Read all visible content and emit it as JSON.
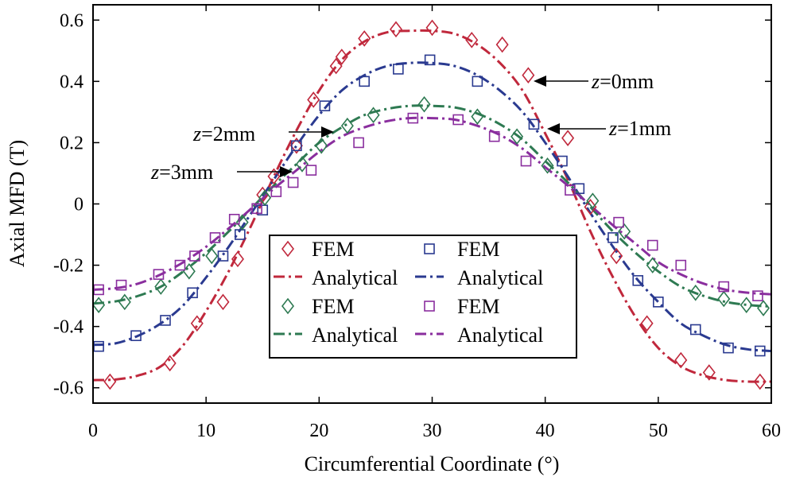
{
  "chart_data": {
    "type": "line",
    "title": "",
    "xlabel": "Circumferential Coordinate (°)",
    "ylabel": "Axial MFD (T)",
    "xlim": [
      0,
      60
    ],
    "ylim": [
      -0.65,
      0.65
    ],
    "xticks": [
      0,
      10,
      20,
      30,
      40,
      50,
      60
    ],
    "yticks": [
      -0.6,
      -0.4,
      -0.2,
      0,
      0.2,
      0.4,
      0.6
    ],
    "xtick_labels": [
      "0",
      "10",
      "20",
      "30",
      "40",
      "50",
      "60"
    ],
    "ytick_labels": [
      "-0.6",
      "-0.4",
      "-0.2",
      "0",
      "0.2",
      "0.4",
      "0.6"
    ],
    "grid": false,
    "legend_position": "lower-center",
    "legend": [
      {
        "label": "FEM",
        "kind": "marker",
        "series": 0
      },
      {
        "label": "FEM",
        "kind": "marker",
        "series": 1
      },
      {
        "label": "Analytical",
        "kind": "line",
        "series": 0
      },
      {
        "label": "Analytical",
        "kind": "line",
        "series": 1
      },
      {
        "label": "FEM",
        "kind": "marker",
        "series": 2
      },
      {
        "label": "FEM",
        "kind": "marker",
        "series": 3
      },
      {
        "label": "Analytical",
        "kind": "line",
        "series": 2
      },
      {
        "label": "Analytical",
        "kind": "line",
        "series": 3
      }
    ],
    "series": [
      {
        "name": "z=0mm",
        "color": "#c0283c",
        "marker": "diamond",
        "analytical": {
          "x": [
            0,
            2,
            4,
            6,
            8,
            10,
            12,
            14,
            16,
            18,
            20,
            22,
            24,
            26,
            28,
            30,
            32,
            34,
            36,
            38,
            40,
            42,
            44,
            46,
            48,
            50,
            52,
            54,
            56,
            58,
            60
          ],
          "y": [
            -0.575,
            -0.573,
            -0.56,
            -0.53,
            -0.46,
            -0.35,
            -0.22,
            -0.07,
            0.09,
            0.24,
            0.37,
            0.47,
            0.53,
            0.56,
            0.565,
            0.565,
            0.555,
            0.52,
            0.46,
            0.37,
            0.23,
            0.08,
            -0.09,
            -0.24,
            -0.37,
            -0.47,
            -0.53,
            -0.56,
            -0.575,
            -0.58,
            -0.58
          ]
        },
        "fem": {
          "x": [
            1.5,
            6.8,
            9.2,
            11.5,
            12.8,
            15,
            16,
            18,
            19.5,
            21.5,
            22,
            24,
            26.8,
            30,
            33.5,
            36.2,
            38.5,
            42,
            44,
            46.3,
            49,
            52,
            54.5,
            59
          ],
          "y": [
            -0.58,
            -0.52,
            -0.39,
            -0.32,
            -0.18,
            0.03,
            0.09,
            0.19,
            0.34,
            0.45,
            0.48,
            0.54,
            0.57,
            0.575,
            0.535,
            0.52,
            0.42,
            0.215,
            -0.01,
            -0.17,
            -0.39,
            -0.51,
            -0.55,
            -0.58
          ]
        }
      },
      {
        "name": "z=1mm",
        "color": "#2a3a90",
        "marker": "square",
        "analytical": {
          "x": [
            0,
            2,
            4,
            6,
            8,
            10,
            12,
            14,
            16,
            18,
            20,
            22,
            24,
            26,
            28,
            30,
            32,
            34,
            36,
            38,
            40,
            42,
            44,
            46,
            48,
            50,
            52,
            54,
            56,
            58,
            60
          ],
          "y": [
            -0.46,
            -0.455,
            -0.43,
            -0.39,
            -0.33,
            -0.24,
            -0.14,
            -0.03,
            0.08,
            0.19,
            0.29,
            0.37,
            0.42,
            0.45,
            0.46,
            0.46,
            0.45,
            0.42,
            0.37,
            0.3,
            0.2,
            0.09,
            -0.03,
            -0.14,
            -0.24,
            -0.32,
            -0.39,
            -0.43,
            -0.46,
            -0.475,
            -0.48
          ]
        },
        "fem": {
          "x": [
            0.5,
            3.8,
            6.4,
            8.8,
            11.5,
            13,
            15,
            18,
            20.5,
            24,
            27,
            29.8,
            34,
            39,
            41.5,
            43,
            46,
            48.2,
            50,
            53.3,
            56.2,
            59
          ],
          "y": [
            -0.465,
            -0.43,
            -0.38,
            -0.29,
            -0.17,
            -0.1,
            -0.02,
            0.19,
            0.32,
            0.4,
            0.44,
            0.47,
            0.4,
            0.26,
            0.14,
            0.05,
            -0.11,
            -0.25,
            -0.32,
            -0.41,
            -0.47,
            -0.48
          ]
        }
      },
      {
        "name": "z=2mm",
        "color": "#2e7a52",
        "marker": "diamond",
        "analytical": {
          "x": [
            0,
            2,
            4,
            6,
            8,
            10,
            12,
            14,
            16,
            18,
            20,
            22,
            24,
            26,
            28,
            30,
            32,
            34,
            36,
            38,
            40,
            42,
            44,
            46,
            48,
            50,
            52,
            54,
            56,
            58,
            60
          ],
          "y": [
            -0.325,
            -0.318,
            -0.3,
            -0.27,
            -0.22,
            -0.16,
            -0.09,
            -0.015,
            0.06,
            0.13,
            0.2,
            0.25,
            0.29,
            0.31,
            0.32,
            0.32,
            0.315,
            0.295,
            0.26,
            0.21,
            0.14,
            0.07,
            -0.01,
            -0.09,
            -0.16,
            -0.22,
            -0.27,
            -0.3,
            -0.32,
            -0.33,
            -0.335
          ]
        },
        "fem": {
          "x": [
            0.5,
            2.8,
            6,
            8.5,
            10.5,
            13.2,
            15.2,
            18.5,
            20.2,
            22.5,
            24.8,
            29.3,
            34,
            37.5,
            40.2,
            44.2,
            47,
            49.5,
            53.3,
            55.8,
            57.8,
            59.3
          ],
          "y": [
            -0.33,
            -0.32,
            -0.27,
            -0.22,
            -0.17,
            -0.06,
            0.02,
            0.13,
            0.19,
            0.255,
            0.29,
            0.325,
            0.285,
            0.22,
            0.125,
            0.01,
            -0.09,
            -0.2,
            -0.29,
            -0.31,
            -0.33,
            -0.34
          ]
        }
      },
      {
        "name": "z=3mm",
        "color": "#8a2e9e",
        "marker": "square",
        "analytical": {
          "x": [
            0,
            2,
            4,
            6,
            8,
            10,
            12,
            14,
            16,
            18,
            20,
            22,
            24,
            26,
            28,
            30,
            32,
            34,
            36,
            38,
            40,
            42,
            44,
            46,
            48,
            50,
            52,
            54,
            56,
            58,
            60
          ],
          "y": [
            -0.28,
            -0.275,
            -0.26,
            -0.23,
            -0.19,
            -0.14,
            -0.08,
            -0.015,
            0.05,
            0.11,
            0.17,
            0.22,
            0.25,
            0.27,
            0.28,
            0.28,
            0.275,
            0.255,
            0.225,
            0.18,
            0.12,
            0.06,
            -0.005,
            -0.07,
            -0.13,
            -0.19,
            -0.23,
            -0.26,
            -0.28,
            -0.29,
            -0.295
          ]
        },
        "fem": {
          "x": [
            0.5,
            2.5,
            5.8,
            7.7,
            9,
            10.8,
            12.5,
            14.5,
            16.2,
            17.7,
            19.3,
            23.5,
            28.3,
            32.3,
            35.5,
            38.3,
            42.2,
            46.5,
            49.5,
            52,
            55.8,
            58.8
          ],
          "y": [
            -0.28,
            -0.265,
            -0.23,
            -0.2,
            -0.17,
            -0.11,
            -0.05,
            -0.015,
            0.04,
            0.07,
            0.11,
            0.2,
            0.28,
            0.275,
            0.22,
            0.14,
            0.045,
            -0.06,
            -0.135,
            -0.2,
            -0.27,
            -0.3
          ]
        }
      }
    ],
    "annotations": [
      {
        "label": "z=0mm",
        "series": 0,
        "arrow_to": [
          38.8,
          0.405
        ]
      },
      {
        "label": "z=1mm",
        "series": 1,
        "arrow_to": [
          40.2,
          0.24
        ]
      },
      {
        "label": "z=2mm",
        "series": 2,
        "arrow_to": [
          21.2,
          0.235
        ]
      },
      {
        "label": "z=3mm",
        "series": 3,
        "arrow_to": [
          17.5,
          0.095
        ]
      }
    ]
  }
}
